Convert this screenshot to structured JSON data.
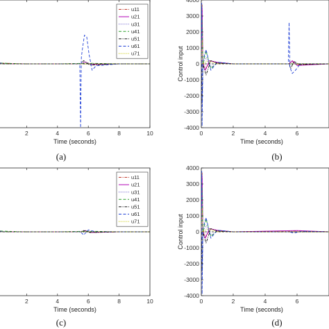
{
  "panel_captions": [
    "(a)",
    "(b)",
    "(c)",
    "(d)"
  ],
  "colors": {
    "u11": "#c0392b",
    "u21": "#b000b5",
    "u31": "#6a5acd",
    "u41": "#2ca02c",
    "u51": "#111111",
    "u61": "#1f3fd6",
    "u71": "#c8c800"
  },
  "chart_data": [
    {
      "id": "a",
      "type": "line",
      "caption": "(a)",
      "xlabel": "Time (seconds)",
      "ylabel": "",
      "xlim": [
        0,
        10
      ],
      "xticks": [
        2,
        4,
        6,
        8,
        10
      ],
      "xtick_labels": [
        "2",
        "4",
        "6",
        "8",
        "10"
      ],
      "ylim": [
        -1,
        1
      ],
      "yticks": [],
      "ytick_labels": [],
      "legend": "top-right",
      "grid": false,
      "series": [
        {
          "name": "u11",
          "color": "#c0392b",
          "dash": "dashdot",
          "x": [
            0,
            0.5,
            2,
            4,
            5.5,
            6,
            8,
            10
          ],
          "y": [
            0.02,
            0.01,
            0.0,
            0.0,
            0.0,
            0.0,
            0.0,
            0.0
          ]
        },
        {
          "name": "u21",
          "color": "#b000b5",
          "dash": "solid",
          "x": [
            0,
            0.5,
            2,
            4,
            5.5,
            5.8,
            6.2,
            8,
            10
          ],
          "y": [
            0.03,
            0.0,
            0.0,
            0.0,
            0.0,
            0.03,
            -0.01,
            0.0,
            0.0
          ]
        },
        {
          "name": "u31",
          "color": "#6a5acd",
          "dash": "dotted",
          "x": [
            0,
            0.5,
            2,
            4,
            6,
            8,
            10
          ],
          "y": [
            0.02,
            0.0,
            0.0,
            0.0,
            0.0,
            0.0,
            0.0
          ]
        },
        {
          "name": "u41",
          "color": "#2ca02c",
          "dash": "dashed",
          "x": [
            0,
            0.5,
            2,
            4,
            6,
            8,
            10
          ],
          "y": [
            0.02,
            0.01,
            0.0,
            0.0,
            0.01,
            0.0,
            0.0
          ]
        },
        {
          "name": "u51",
          "color": "#111111",
          "dash": "dashdot",
          "x": [
            0,
            0.5,
            2,
            4,
            5.5,
            5.7,
            6.1,
            8,
            10
          ],
          "y": [
            0.01,
            0.0,
            0.0,
            0.0,
            0.0,
            0.05,
            -0.02,
            0.0,
            0.0
          ]
        },
        {
          "name": "u61",
          "color": "#1f3fd6",
          "dash": "dashed",
          "x": [
            0,
            0.5,
            2,
            4,
            5.45,
            5.5,
            5.55,
            5.6,
            5.75,
            5.9,
            6.05,
            6.25,
            6.5,
            8,
            10
          ],
          "y": [
            0.03,
            0.0,
            0.0,
            0.0,
            0.0,
            -1.0,
            0.1,
            0.2,
            0.45,
            0.42,
            0.15,
            -0.1,
            -0.03,
            0.0,
            0.0
          ]
        },
        {
          "name": "u71",
          "color": "#c8c800",
          "dash": "dotted",
          "x": [
            0,
            0.5,
            2,
            4,
            6,
            8,
            10
          ],
          "y": [
            0.01,
            0.0,
            0.0,
            0.0,
            0.0,
            0.0,
            0.0
          ]
        }
      ]
    },
    {
      "id": "b",
      "type": "line",
      "caption": "(b)",
      "xlabel": "Time (seconds)",
      "ylabel": "Control input",
      "xlim": [
        0,
        8
      ],
      "xticks": [
        0,
        2,
        4,
        6
      ],
      "xtick_labels": [
        "0",
        "2",
        "4",
        "6"
      ],
      "ylim": [
        -4000,
        4000
      ],
      "yticks": [
        -4000,
        -3000,
        -2000,
        -1000,
        0,
        1000,
        2000,
        3000,
        4000
      ],
      "ytick_labels": [
        "-4000",
        "-3000",
        "-2000",
        "-1000",
        "0",
        "1000",
        "2000",
        "3000",
        "4000"
      ],
      "legend": "none",
      "grid": false,
      "series": [
        {
          "name": "u11",
          "color": "#c0392b",
          "dash": "dashdot",
          "x": [
            0,
            0.05,
            0.1,
            0.3,
            0.6,
            1,
            2,
            5.5,
            5.7,
            6,
            8
          ],
          "y": [
            0,
            3700,
            100,
            -300,
            200,
            50,
            0,
            0,
            150,
            -50,
            0
          ]
        },
        {
          "name": "u21",
          "color": "#b000b5",
          "dash": "solid",
          "x": [
            0,
            0.05,
            0.1,
            0.25,
            0.5,
            1,
            2,
            5.5,
            5.7,
            6,
            8
          ],
          "y": [
            0,
            3500,
            0,
            -400,
            200,
            100,
            0,
            0,
            200,
            -100,
            0
          ]
        },
        {
          "name": "u31",
          "color": "#6a5acd",
          "dash": "dotted",
          "x": [
            0,
            0.05,
            0.1,
            0.3,
            0.6,
            1,
            2,
            8
          ],
          "y": [
            0,
            -3000,
            0,
            400,
            -200,
            50,
            0,
            0
          ]
        },
        {
          "name": "u41",
          "color": "#2ca02c",
          "dash": "dashed",
          "x": [
            0,
            0.05,
            0.1,
            0.3,
            0.6,
            1,
            2,
            8
          ],
          "y": [
            0,
            2800,
            0,
            800,
            -300,
            100,
            0,
            0
          ]
        },
        {
          "name": "u51",
          "color": "#111111",
          "dash": "dashdot",
          "x": [
            0,
            0.05,
            0.1,
            0.3,
            0.6,
            1,
            2,
            5.5,
            5.6,
            5.8,
            6.2,
            8
          ],
          "y": [
            0,
            -2500,
            0,
            -700,
            200,
            50,
            0,
            0,
            -300,
            150,
            -50,
            0
          ]
        },
        {
          "name": "u61",
          "color": "#1f3fd6",
          "dash": "dashed",
          "x": [
            0,
            0.03,
            0.05,
            0.1,
            0.3,
            0.6,
            1,
            2,
            5.45,
            5.5,
            5.55,
            5.7,
            5.9,
            6.2,
            8
          ],
          "y": [
            0,
            3800,
            -3900,
            200,
            900,
            -400,
            100,
            0,
            0,
            2600,
            -200,
            -600,
            -400,
            0,
            0
          ]
        },
        {
          "name": "u71",
          "color": "#c8c800",
          "dash": "dotted",
          "x": [
            0,
            0.05,
            0.1,
            0.4,
            1,
            2,
            8
          ],
          "y": [
            0,
            1500,
            0,
            200,
            0,
            0,
            0
          ]
        }
      ]
    },
    {
      "id": "c",
      "type": "line",
      "caption": "(c)",
      "xlabel": "Time (seconds)",
      "ylabel": "",
      "xlim": [
        0,
        10
      ],
      "xticks": [
        2,
        4,
        6,
        8,
        10
      ],
      "xtick_labels": [
        "2",
        "4",
        "6",
        "8",
        "10"
      ],
      "ylim": [
        -1,
        1
      ],
      "yticks": [],
      "ytick_labels": [],
      "legend": "top-right",
      "grid": false,
      "series": [
        {
          "name": "u11",
          "color": "#c0392b",
          "dash": "dashdot",
          "x": [
            0,
            0.5,
            2,
            4,
            5.5,
            5.8,
            6.2,
            8,
            10
          ],
          "y": [
            0.02,
            0.0,
            0.0,
            0.0,
            0.0,
            0.02,
            -0.01,
            0.0,
            0.0
          ]
        },
        {
          "name": "u21",
          "color": "#b000b5",
          "dash": "solid",
          "x": [
            0,
            0.5,
            2,
            4,
            5.5,
            5.8,
            6.2,
            8,
            10
          ],
          "y": [
            0.03,
            0.0,
            0.0,
            0.0,
            0.0,
            0.02,
            -0.01,
            0.0,
            0.0
          ]
        },
        {
          "name": "u31",
          "color": "#6a5acd",
          "dash": "dotted",
          "x": [
            0,
            0.5,
            2,
            4,
            6,
            8,
            10
          ],
          "y": [
            0.02,
            0.0,
            0.0,
            0.0,
            0.0,
            0.0,
            0.0
          ]
        },
        {
          "name": "u41",
          "color": "#2ca02c",
          "dash": "dashed",
          "x": [
            0,
            0.5,
            2,
            4,
            6,
            8,
            10
          ],
          "y": [
            0.02,
            0.01,
            0.0,
            0.0,
            0.01,
            0.0,
            0.0
          ]
        },
        {
          "name": "u51",
          "color": "#111111",
          "dash": "dashdot",
          "x": [
            0,
            0.5,
            2,
            4,
            5.5,
            5.7,
            6.1,
            8,
            10
          ],
          "y": [
            0.01,
            0.0,
            0.0,
            0.0,
            0.0,
            0.02,
            -0.01,
            0.0,
            0.0
          ]
        },
        {
          "name": "u61",
          "color": "#1f3fd6",
          "dash": "dashed",
          "x": [
            0,
            0.5,
            2,
            4,
            5.5,
            5.7,
            6.0,
            6.5,
            8,
            10
          ],
          "y": [
            0.02,
            0.0,
            0.0,
            0.0,
            0.0,
            -0.05,
            0.03,
            0.0,
            0.0,
            0.0
          ]
        },
        {
          "name": "u71",
          "color": "#c8c800",
          "dash": "dotted",
          "x": [
            0,
            0.5,
            2,
            4,
            6,
            8,
            10
          ],
          "y": [
            0.01,
            0.0,
            0.0,
            0.0,
            0.0,
            0.0,
            0.0
          ]
        }
      ]
    },
    {
      "id": "d",
      "type": "line",
      "caption": "(d)",
      "xlabel": "Time (seconds)",
      "ylabel": "Control input",
      "xlim": [
        0,
        8
      ],
      "xticks": [
        0,
        2,
        4,
        6
      ],
      "xtick_labels": [
        "0",
        "2",
        "4",
        "6"
      ],
      "ylim": [
        -4000,
        4000
      ],
      "yticks": [
        -4000,
        -3000,
        -2000,
        -1000,
        0,
        1000,
        2000,
        3000,
        4000
      ],
      "ytick_labels": [
        "-4000",
        "-3000",
        "-2000",
        "-1000",
        "0",
        "1000",
        "2000",
        "3000",
        "4000"
      ],
      "legend": "none",
      "grid": false,
      "series": [
        {
          "name": "u11",
          "color": "#c0392b",
          "dash": "dashdot",
          "x": [
            0,
            0.05,
            0.1,
            0.3,
            0.6,
            1,
            2,
            4,
            6,
            8
          ],
          "y": [
            0,
            3700,
            100,
            -300,
            200,
            50,
            0,
            30,
            60,
            0
          ]
        },
        {
          "name": "u21",
          "color": "#b000b5",
          "dash": "solid",
          "x": [
            0,
            0.05,
            0.1,
            0.25,
            0.5,
            1,
            2,
            4,
            6,
            8
          ],
          "y": [
            0,
            3500,
            0,
            -400,
            200,
            100,
            0,
            40,
            80,
            0
          ]
        },
        {
          "name": "u31",
          "color": "#6a5acd",
          "dash": "dotted",
          "x": [
            0,
            0.05,
            0.1,
            0.3,
            0.6,
            1,
            2,
            8
          ],
          "y": [
            0,
            -3000,
            0,
            400,
            -200,
            50,
            0,
            0
          ]
        },
        {
          "name": "u41",
          "color": "#2ca02c",
          "dash": "dashed",
          "x": [
            0,
            0.05,
            0.1,
            0.3,
            0.6,
            1,
            2,
            8
          ],
          "y": [
            0,
            2800,
            0,
            800,
            -300,
            100,
            0,
            0
          ]
        },
        {
          "name": "u51",
          "color": "#111111",
          "dash": "dashdot",
          "x": [
            0,
            0.05,
            0.1,
            0.3,
            0.6,
            1,
            2,
            8
          ],
          "y": [
            0,
            -2500,
            0,
            -700,
            200,
            50,
            0,
            0
          ]
        },
        {
          "name": "u61",
          "color": "#1f3fd6",
          "dash": "dashed",
          "x": [
            0,
            0.03,
            0.05,
            0.1,
            0.3,
            0.6,
            1,
            2,
            5.5,
            5.8,
            6.3,
            8
          ],
          "y": [
            0,
            3800,
            -3900,
            200,
            900,
            -400,
            100,
            0,
            0,
            -80,
            40,
            0
          ]
        },
        {
          "name": "u71",
          "color": "#c8c800",
          "dash": "dotted",
          "x": [
            0,
            0.05,
            0.1,
            0.4,
            1,
            2,
            8
          ],
          "y": [
            0,
            1500,
            0,
            200,
            0,
            0,
            0
          ]
        }
      ]
    }
  ]
}
